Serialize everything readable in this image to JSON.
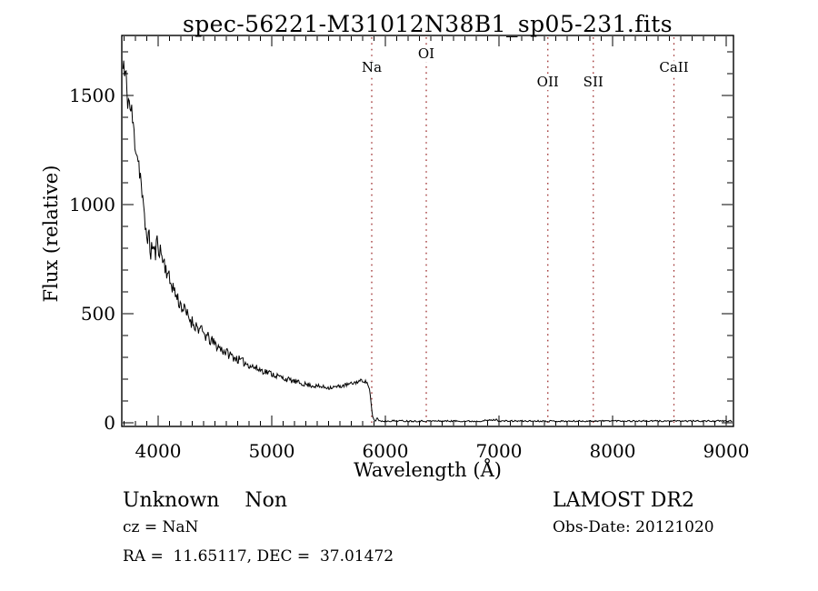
{
  "title": "spec-56221-M31012N38B1_sp05-231.fits",
  "annotations": {
    "class_line": "Unknown    Non",
    "cz_line": "cz = NaN",
    "radec_line": "RA =  11.65117, DEC =  37.01472",
    "survey": "LAMOST DR2",
    "obs_date": "Obs-Date: 20121020"
  },
  "chart_data": {
    "type": "line",
    "title": "spec-56221-M31012N38B1_sp05-231.fits",
    "xlabel": "Wavelength (Å)",
    "ylabel": "Flux (relative)",
    "xlim": [
      3680,
      9065
    ],
    "ylim": [
      0,
      1775
    ],
    "grid": false,
    "legend": "none",
    "x_major_ticks": [
      4000,
      5000,
      6000,
      7000,
      8000,
      9000
    ],
    "x_minor_step": 100,
    "y_major_ticks": [
      0,
      500,
      1000,
      1500
    ],
    "y_minor_step": 100,
    "line_color": "#000000",
    "marker_line_color": "#9e2f2f",
    "spectral_lines": [
      {
        "label": "Na",
        "wavelength": 5880,
        "label_y": 75
      },
      {
        "label": "OI",
        "wavelength": 6360,
        "label_y": 60
      },
      {
        "label": "OII",
        "wavelength": 7430,
        "label_y": 91
      },
      {
        "label": "SII",
        "wavelength": 7830,
        "label_y": 91
      },
      {
        "label": "CaII",
        "wavelength": 8540,
        "label_y": 75
      }
    ],
    "series": [
      {
        "name": "spectrum-continuum-anchors",
        "points": [
          [
            3690,
            1620
          ],
          [
            3697,
            1655
          ],
          [
            3705,
            1560
          ],
          [
            3713,
            1610
          ],
          [
            3722,
            1525
          ],
          [
            3735,
            1490
          ],
          [
            3750,
            1450
          ],
          [
            3765,
            1420
          ],
          [
            3778,
            1370
          ],
          [
            3790,
            1310
          ],
          [
            3803,
            1275
          ],
          [
            3816,
            1235
          ],
          [
            3830,
            1190
          ],
          [
            3845,
            1130
          ],
          [
            3860,
            1030
          ],
          [
            3875,
            950
          ],
          [
            3890,
            885
          ],
          [
            3905,
            865
          ],
          [
            3920,
            845
          ],
          [
            3933,
            775
          ],
          [
            3945,
            815
          ],
          [
            3960,
            795
          ],
          [
            3975,
            770
          ],
          [
            3990,
            830
          ],
          [
            4005,
            810
          ],
          [
            4025,
            775
          ],
          [
            4045,
            745
          ],
          [
            4065,
            715
          ],
          [
            4085,
            685
          ],
          [
            4101,
            645
          ],
          [
            4120,
            640
          ],
          [
            4145,
            600
          ],
          [
            4170,
            570
          ],
          [
            4200,
            540
          ],
          [
            4250,
            498
          ],
          [
            4300,
            462
          ],
          [
            4340,
            442
          ],
          [
            4400,
            408
          ],
          [
            4450,
            383
          ],
          [
            4500,
            360
          ],
          [
            4550,
            340
          ],
          [
            4600,
            322
          ],
          [
            4650,
            306
          ],
          [
            4700,
            291
          ],
          [
            4750,
            278
          ],
          [
            4800,
            266
          ],
          [
            4861,
            250
          ],
          [
            4900,
            243
          ],
          [
            4950,
            234
          ],
          [
            5000,
            225
          ],
          [
            5050,
            214
          ],
          [
            5100,
            205
          ],
          [
            5150,
            197
          ],
          [
            5200,
            189
          ],
          [
            5250,
            182
          ],
          [
            5300,
            176
          ],
          [
            5350,
            171
          ],
          [
            5400,
            167
          ],
          [
            5450,
            164
          ],
          [
            5500,
            162
          ],
          [
            5550,
            163
          ],
          [
            5600,
            167
          ],
          [
            5650,
            173
          ],
          [
            5700,
            179
          ],
          [
            5750,
            187
          ],
          [
            5790,
            194
          ],
          [
            5815,
            192
          ],
          [
            5840,
            183
          ],
          [
            5858,
            160
          ],
          [
            5870,
            110
          ],
          [
            5880,
            55
          ],
          [
            5890,
            22
          ],
          [
            5900,
            12
          ],
          [
            5915,
            9
          ],
          [
            5930,
            25
          ],
          [
            5940,
            10
          ],
          [
            5960,
            8
          ],
          [
            6000,
            8
          ],
          [
            6100,
            9
          ],
          [
            6200,
            8
          ],
          [
            6400,
            8
          ],
          [
            6600,
            8
          ],
          [
            6800,
            7
          ],
          [
            6980,
            14
          ],
          [
            7000,
            8
          ],
          [
            7200,
            8
          ],
          [
            7400,
            8
          ],
          [
            7600,
            7
          ],
          [
            7800,
            8
          ],
          [
            8000,
            9
          ],
          [
            8200,
            8
          ],
          [
            8400,
            8
          ],
          [
            8600,
            8
          ],
          [
            8800,
            8
          ],
          [
            9000,
            8
          ],
          [
            9058,
            8
          ]
        ]
      }
    ],
    "noise_amplitude_profile": [
      [
        3690,
        75
      ],
      [
        3800,
        62
      ],
      [
        3900,
        48
      ],
      [
        4000,
        46
      ],
      [
        4200,
        36
      ],
      [
        4400,
        29
      ],
      [
        4600,
        23
      ],
      [
        4800,
        18
      ],
      [
        5000,
        15
      ],
      [
        5200,
        12
      ],
      [
        5400,
        10
      ],
      [
        5600,
        9
      ],
      [
        5800,
        8
      ],
      [
        5855,
        7
      ],
      [
        5890,
        5
      ],
      [
        5920,
        4
      ],
      [
        6100,
        4
      ],
      [
        6400,
        3.5
      ],
      [
        9058,
        3.5
      ]
    ]
  }
}
